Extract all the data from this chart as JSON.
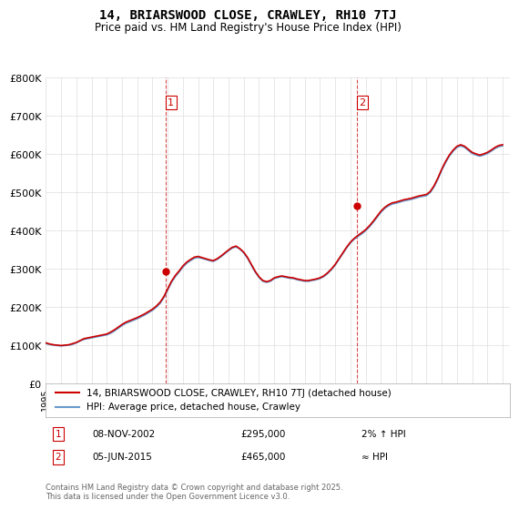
{
  "title": "14, BRIARSWOOD CLOSE, CRAWLEY, RH10 7TJ",
  "subtitle": "Price paid vs. HM Land Registry's House Price Index (HPI)",
  "legend_line1": "14, BRIARSWOOD CLOSE, CRAWLEY, RH10 7TJ (detached house)",
  "legend_line2": "HPI: Average price, detached house, Crawley",
  "annotation1_label": "1",
  "annotation1_date": "08-NOV-2002",
  "annotation1_price": "£295,000",
  "annotation1_hpi": "2% ↑ HPI",
  "annotation2_label": "2",
  "annotation2_date": "05-JUN-2015",
  "annotation2_price": "£465,000",
  "annotation2_hpi": "≈ HPI",
  "footnote": "Contains HM Land Registry data © Crown copyright and database right 2025.\nThis data is licensed under the Open Government Licence v3.0.",
  "vline1_x": 2002.86,
  "vline2_x": 2015.43,
  "sale1_x": 2002.86,
  "sale1_y": 295000,
  "sale2_x": 2015.43,
  "sale2_y": 465000,
  "hpi_color": "#6699cc",
  "price_color": "#cc0000",
  "vline_color": "#cc0000",
  "background_color": "#ffffff",
  "grid_color": "#dddddd",
  "ylim": [
    0,
    800000
  ],
  "xlim": [
    1995,
    2025.5
  ],
  "ylabel_ticks": [
    0,
    100000,
    200000,
    300000,
    400000,
    500000,
    600000,
    700000,
    800000
  ],
  "ylabel_labels": [
    "£0",
    "£100K",
    "£200K",
    "£300K",
    "£400K",
    "£500K",
    "£600K",
    "£700K",
    "£800K"
  ],
  "hpi_data_x": [
    1995.0,
    1995.25,
    1995.5,
    1995.75,
    1996.0,
    1996.25,
    1996.5,
    1996.75,
    1997.0,
    1997.25,
    1997.5,
    1997.75,
    1998.0,
    1998.25,
    1998.5,
    1998.75,
    1999.0,
    1999.25,
    1999.5,
    1999.75,
    2000.0,
    2000.25,
    2000.5,
    2000.75,
    2001.0,
    2001.25,
    2001.5,
    2001.75,
    2002.0,
    2002.25,
    2002.5,
    2002.75,
    2003.0,
    2003.25,
    2003.5,
    2003.75,
    2004.0,
    2004.25,
    2004.5,
    2004.75,
    2005.0,
    2005.25,
    2005.5,
    2005.75,
    2006.0,
    2006.25,
    2006.5,
    2006.75,
    2007.0,
    2007.25,
    2007.5,
    2007.75,
    2008.0,
    2008.25,
    2008.5,
    2008.75,
    2009.0,
    2009.25,
    2009.5,
    2009.75,
    2010.0,
    2010.25,
    2010.5,
    2010.75,
    2011.0,
    2011.25,
    2011.5,
    2011.75,
    2012.0,
    2012.25,
    2012.5,
    2012.75,
    2013.0,
    2013.25,
    2013.5,
    2013.75,
    2014.0,
    2014.25,
    2014.5,
    2014.75,
    2015.0,
    2015.25,
    2015.5,
    2015.75,
    2016.0,
    2016.25,
    2016.5,
    2016.75,
    2017.0,
    2017.25,
    2017.5,
    2017.75,
    2018.0,
    2018.25,
    2018.5,
    2018.75,
    2019.0,
    2019.25,
    2019.5,
    2019.75,
    2020.0,
    2020.25,
    2020.5,
    2020.75,
    2021.0,
    2021.25,
    2021.5,
    2021.75,
    2022.0,
    2022.25,
    2022.5,
    2022.75,
    2023.0,
    2023.25,
    2023.5,
    2023.75,
    2024.0,
    2024.25,
    2024.5,
    2024.75,
    2025.0
  ],
  "hpi_data_y": [
    105000,
    103000,
    101000,
    100000,
    99000,
    100000,
    101000,
    103000,
    107000,
    112000,
    116000,
    118000,
    120000,
    122000,
    124000,
    126000,
    128000,
    132000,
    138000,
    145000,
    152000,
    158000,
    162000,
    166000,
    170000,
    175000,
    180000,
    186000,
    192000,
    200000,
    210000,
    225000,
    245000,
    265000,
    280000,
    292000,
    305000,
    315000,
    322000,
    328000,
    330000,
    328000,
    325000,
    322000,
    320000,
    325000,
    332000,
    340000,
    348000,
    355000,
    358000,
    352000,
    342000,
    328000,
    310000,
    292000,
    278000,
    268000,
    265000,
    268000,
    275000,
    278000,
    280000,
    278000,
    276000,
    275000,
    272000,
    270000,
    268000,
    268000,
    270000,
    272000,
    275000,
    280000,
    288000,
    298000,
    310000,
    325000,
    340000,
    355000,
    368000,
    378000,
    385000,
    392000,
    400000,
    410000,
    422000,
    435000,
    448000,
    458000,
    465000,
    470000,
    472000,
    475000,
    478000,
    480000,
    482000,
    485000,
    488000,
    490000,
    492000,
    500000,
    515000,
    535000,
    558000,
    578000,
    595000,
    608000,
    618000,
    622000,
    618000,
    610000,
    602000,
    598000,
    595000,
    598000,
    602000,
    608000,
    615000,
    620000,
    622000
  ],
  "price_data_x": [
    1995.0,
    1995.25,
    1995.5,
    1995.75,
    1996.0,
    1996.25,
    1996.5,
    1996.75,
    1997.0,
    1997.25,
    1997.5,
    1997.75,
    1998.0,
    1998.25,
    1998.5,
    1998.75,
    1999.0,
    1999.25,
    1999.5,
    1999.75,
    2000.0,
    2000.25,
    2000.5,
    2000.75,
    2001.0,
    2001.25,
    2001.5,
    2001.75,
    2002.0,
    2002.25,
    2002.5,
    2002.75,
    2003.0,
    2003.25,
    2003.5,
    2003.75,
    2004.0,
    2004.25,
    2004.5,
    2004.75,
    2005.0,
    2005.25,
    2005.5,
    2005.75,
    2006.0,
    2006.25,
    2006.5,
    2006.75,
    2007.0,
    2007.25,
    2007.5,
    2007.75,
    2008.0,
    2008.25,
    2008.5,
    2008.75,
    2009.0,
    2009.25,
    2009.5,
    2009.75,
    2010.0,
    2010.25,
    2010.5,
    2010.75,
    2011.0,
    2011.25,
    2011.5,
    2011.75,
    2012.0,
    2012.25,
    2012.5,
    2012.75,
    2013.0,
    2013.25,
    2013.5,
    2013.75,
    2014.0,
    2014.25,
    2014.5,
    2014.75,
    2015.0,
    2015.25,
    2015.5,
    2015.75,
    2016.0,
    2016.25,
    2016.5,
    2016.75,
    2017.0,
    2017.25,
    2017.5,
    2017.75,
    2018.0,
    2018.25,
    2018.5,
    2018.75,
    2019.0,
    2019.25,
    2019.5,
    2019.75,
    2020.0,
    2020.25,
    2020.5,
    2020.75,
    2021.0,
    2021.25,
    2021.5,
    2021.75,
    2022.0,
    2022.25,
    2022.5,
    2022.75,
    2023.0,
    2023.25,
    2023.5,
    2023.75,
    2024.0,
    2024.25,
    2024.5,
    2024.75,
    2025.0
  ],
  "price_data_y": [
    107000,
    104000,
    102000,
    101000,
    100000,
    101000,
    102000,
    105000,
    108000,
    113000,
    118000,
    120000,
    122000,
    124000,
    126000,
    128000,
    130000,
    135000,
    141000,
    148000,
    155000,
    161000,
    165000,
    169000,
    173000,
    178000,
    183000,
    189000,
    195000,
    203000,
    213000,
    228000,
    248000,
    268000,
    283000,
    295000,
    308000,
    318000,
    325000,
    331000,
    333000,
    330000,
    327000,
    324000,
    322000,
    327000,
    334000,
    342000,
    350000,
    357000,
    360000,
    353000,
    344000,
    330000,
    312000,
    294000,
    280000,
    270000,
    267000,
    270000,
    277000,
    280000,
    282000,
    280000,
    278000,
    277000,
    274000,
    272000,
    270000,
    270000,
    272000,
    274000,
    277000,
    282000,
    290000,
    300000,
    312000,
    327000,
    342000,
    357000,
    370000,
    380000,
    388000,
    395000,
    403000,
    413000,
    425000,
    438000,
    451000,
    461000,
    468000,
    473000,
    475000,
    478000,
    481000,
    483000,
    485000,
    488000,
    491000,
    493000,
    495000,
    503000,
    518000,
    538000,
    561000,
    581000,
    598000,
    611000,
    621000,
    625000,
    621000,
    613000,
    605000,
    601000,
    598000,
    601000,
    605000,
    611000,
    618000,
    623000,
    625000
  ]
}
